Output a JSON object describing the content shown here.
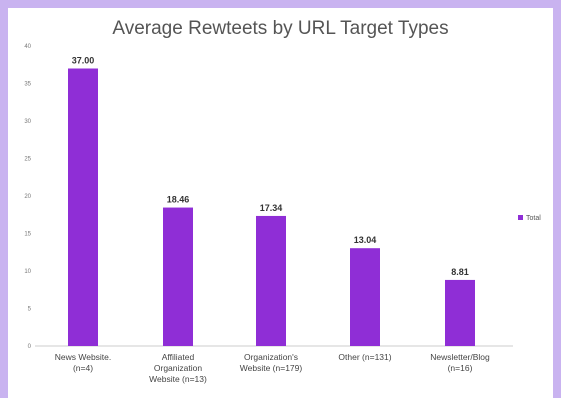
{
  "chart_data": {
    "type": "bar",
    "title": "Average Rewteets by URL Target Types",
    "xlabel": "",
    "ylabel": "",
    "ylim": [
      0,
      40
    ],
    "yticks": [
      "0",
      "5",
      "10",
      "15",
      "20",
      "25",
      "30",
      "35",
      "40"
    ],
    "categories": [
      [
        "News Website.",
        "(n=4)"
      ],
      [
        "Affiliated",
        "Organization",
        "Website (n=13)"
      ],
      [
        "Organization's",
        "Website (n=179)"
      ],
      [
        "Other (n=131)"
      ],
      [
        "Newsletter/Blog",
        "(n=16)"
      ]
    ],
    "series": [
      {
        "name": "Total",
        "values": [
          37.0,
          18.46,
          17.34,
          13.04,
          8.81
        ],
        "labels": [
          "37.00",
          "18.46",
          "17.34",
          "13.04",
          "8.81"
        ],
        "color": "#8f2ed6"
      }
    ],
    "legend": "right",
    "grid": false
  }
}
